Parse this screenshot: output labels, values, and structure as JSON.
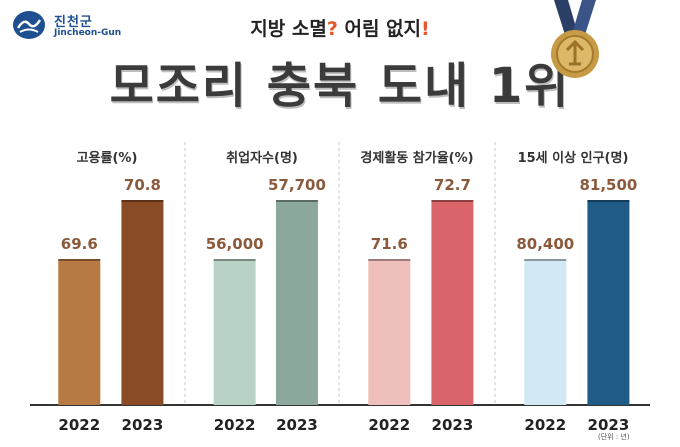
{
  "header": {
    "logo_korean": "진천군",
    "logo_english": "Jincheon-Gun",
    "subtitle_part1": "지방 소멸",
    "subtitle_mark1": "?",
    "subtitle_part2": " 어림 없지",
    "subtitle_mark2": "!",
    "title": "모조리 충북 도내 1위"
  },
  "unit_note": "(단위 : 년)",
  "colors": {
    "employment_rate": [
      "#b87a45",
      "#8a4a26"
    ],
    "employed_count": [
      "#b8d3c6",
      "#8ca79c"
    ],
    "participation_rate": [
      "#efbfbb",
      "#d9656a"
    ],
    "population_15plus": [
      "#d3e8f5",
      "#1f5b86"
    ]
  },
  "icons": [
    "medal-icon",
    "logo-icon"
  ],
  "chart_data": [
    {
      "type": "bar",
      "title": "고용률(%)",
      "categories": [
        "2022",
        "2023"
      ],
      "values": [
        69.6,
        70.8
      ],
      "data_labels": [
        "69.6",
        "70.8"
      ]
    },
    {
      "type": "bar",
      "title": "취업자수(명)",
      "categories": [
        "2022",
        "2023"
      ],
      "values": [
        56000,
        57700
      ],
      "data_labels": [
        "56,000",
        "57,700"
      ]
    },
    {
      "type": "bar",
      "title": "경제활동 참가율(%)",
      "categories": [
        "2022",
        "2023"
      ],
      "values": [
        71.6,
        72.7
      ],
      "data_labels": [
        "71.6",
        "72.7"
      ]
    },
    {
      "type": "bar",
      "title": "15세 이상 인구(명)",
      "categories": [
        "2022",
        "2023"
      ],
      "values": [
        80400,
        81500
      ],
      "data_labels": [
        "80,400",
        "81,500"
      ]
    }
  ]
}
